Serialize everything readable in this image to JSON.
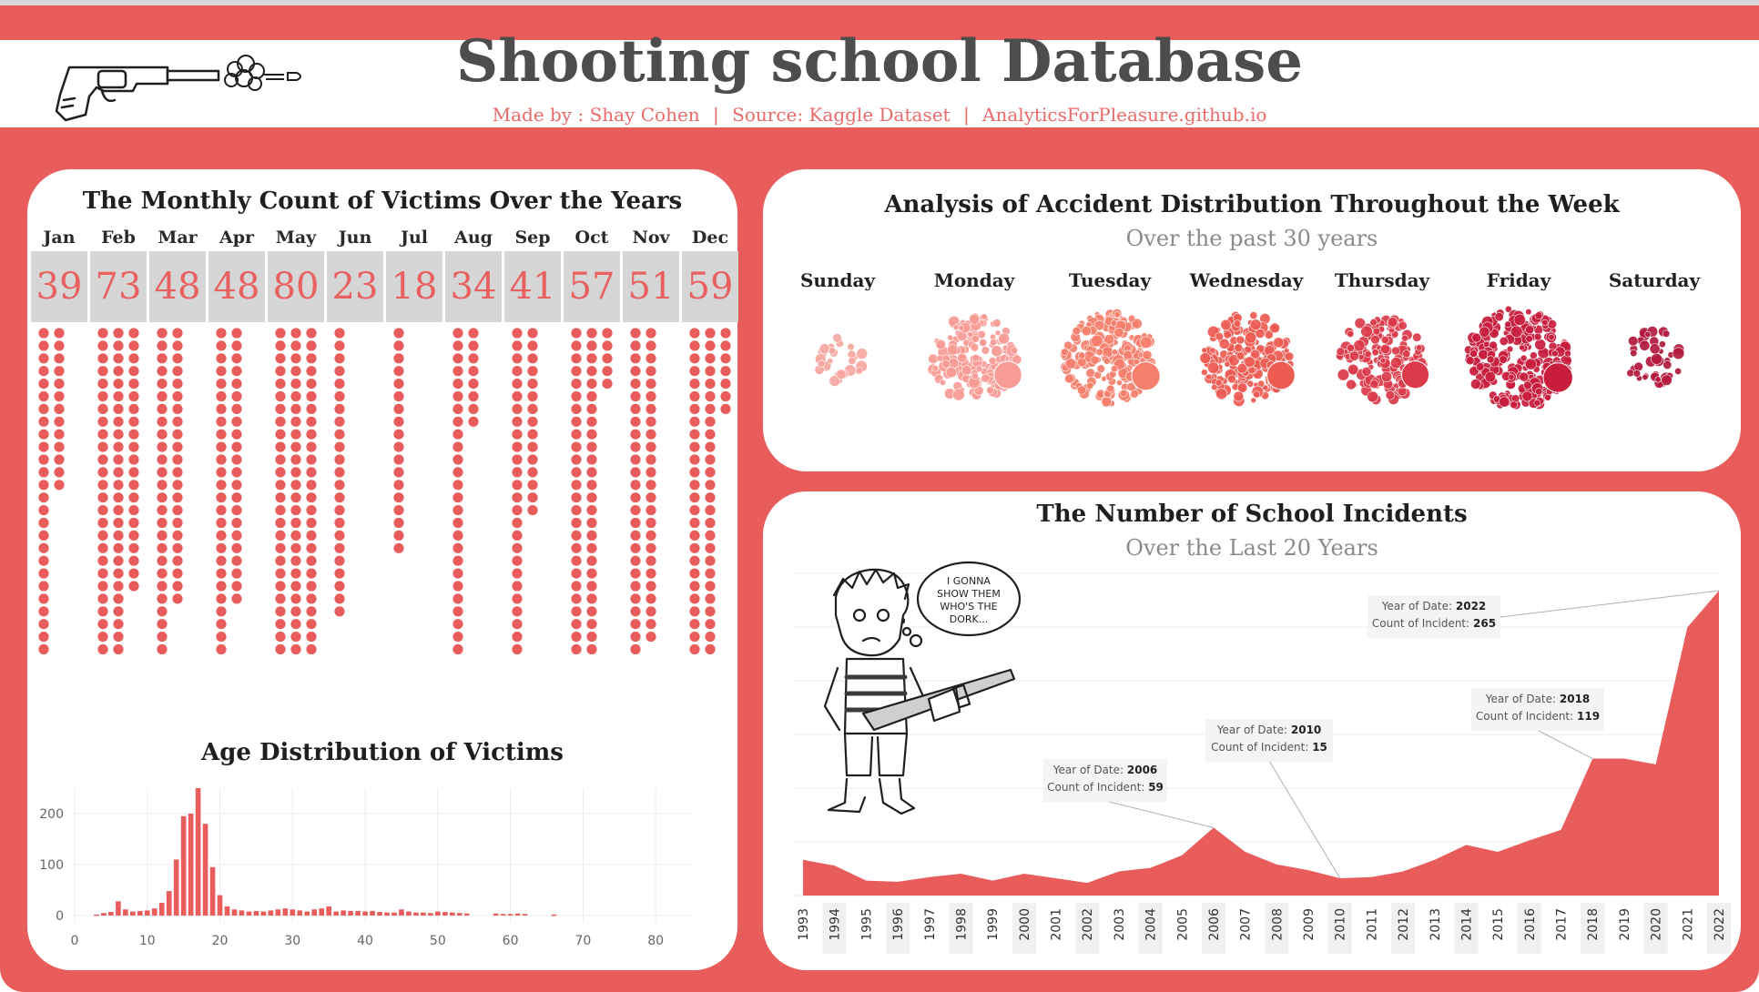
{
  "header": {
    "title": "Shooting school Database",
    "made_by": "Made by : Shay Cohen",
    "separator": "|",
    "source": "Source: Kaggle Dataset",
    "site": "AnalyticsForPleasure.github.io"
  },
  "icons": {
    "logo": "revolver-firing-icon"
  },
  "colors": {
    "brand": "#e85c5c",
    "accent_text": "#e86a6a",
    "panel": "#ffffff"
  },
  "chart_data": [
    {
      "type": "table",
      "title": "The Monthly Count of Victims Over the Years",
      "categories": [
        "Jan",
        "Feb",
        "Mar",
        "Apr",
        "May",
        "Jun",
        "Jul",
        "Aug",
        "Sep",
        "Oct",
        "Nov",
        "Dec"
      ],
      "values": [
        39,
        73,
        48,
        48,
        80,
        23,
        18,
        34,
        41,
        57,
        51,
        59
      ],
      "mark": "dot-column"
    },
    {
      "type": "bar",
      "title": "Age Distribution of Victims",
      "xlim": [
        0,
        85
      ],
      "ylim": [
        0,
        250
      ],
      "x_ticks": [
        0,
        10,
        20,
        30,
        40,
        50,
        60,
        70,
        80
      ],
      "y_ticks": [
        0,
        100,
        200
      ],
      "x": [
        3,
        4,
        5,
        6,
        7,
        8,
        9,
        10,
        11,
        12,
        13,
        14,
        15,
        16,
        17,
        18,
        19,
        20,
        21,
        22,
        23,
        24,
        25,
        26,
        27,
        28,
        29,
        30,
        31,
        32,
        33,
        34,
        35,
        36,
        37,
        38,
        39,
        40,
        41,
        42,
        43,
        44,
        45,
        46,
        47,
        48,
        49,
        50,
        51,
        52,
        53,
        54,
        58,
        59,
        60,
        61,
        62,
        66
      ],
      "values": [
        2,
        5,
        7,
        28,
        12,
        8,
        9,
        10,
        14,
        25,
        48,
        110,
        195,
        200,
        250,
        180,
        95,
        40,
        18,
        12,
        10,
        8,
        9,
        8,
        10,
        12,
        14,
        12,
        10,
        8,
        12,
        14,
        18,
        8,
        10,
        9,
        9,
        8,
        9,
        7,
        6,
        6,
        12,
        8,
        6,
        6,
        5,
        8,
        7,
        6,
        5,
        4,
        4,
        3,
        3,
        4,
        3,
        2
      ]
    },
    {
      "type": "scatter",
      "title": "Analysis of Accident Distribution Throughout the Week",
      "subtitle": "Over the past 30 years",
      "categories": [
        "Sunday",
        "Monday",
        "Tuesday",
        "Wednesday",
        "Thursday",
        "Friday",
        "Saturday"
      ],
      "values": [
        18,
        98,
        120,
        106,
        94,
        155,
        26
      ],
      "colors": [
        "#f7a7a1",
        "#f99b95",
        "#f57f6c",
        "#ed5c53",
        "#dc3a4a",
        "#c81d3d",
        "#b3193d"
      ],
      "mark": "packed-bubbles"
    },
    {
      "type": "area",
      "title": "The Number of School Incidents",
      "subtitle": "Over the Last 20 Years",
      "x": [
        "1993",
        "1994",
        "1995",
        "1996",
        "1997",
        "1998",
        "1999",
        "2000",
        "2001",
        "2002",
        "2003",
        "2004",
        "2005",
        "2006",
        "2007",
        "2008",
        "2009",
        "2010",
        "2011",
        "2012",
        "2013",
        "2014",
        "2015",
        "2016",
        "2017",
        "2018",
        "2019",
        "2020",
        "2021",
        "2022"
      ],
      "values": [
        31,
        26,
        13,
        12,
        16,
        19,
        13,
        19,
        15,
        11,
        21,
        24,
        35,
        59,
        38,
        27,
        22,
        15,
        16,
        21,
        31,
        44,
        38,
        48,
        57,
        119,
        119,
        114,
        233,
        265
      ],
      "ylim": [
        0,
        280
      ],
      "annotations": [
        {
          "year_label": "Year of Date:",
          "year": "2006",
          "count_label": "Count of Incident:",
          "count": "59"
        },
        {
          "year_label": "Year of Date:",
          "year": "2010",
          "count_label": "Count of Incident:",
          "count": "15"
        },
        {
          "year_label": "Year of Date:",
          "year": "2018",
          "count_label": "Count of Incident:",
          "count": "119"
        },
        {
          "year_label": "Year of Date:",
          "year": "2022",
          "count_label": "Count of Incident:",
          "count": "265"
        }
      ]
    }
  ],
  "cartoon": {
    "bubble_lines": [
      "I GONNA",
      "SHOW THEM",
      "WHO'S THE",
      "DORK..."
    ]
  }
}
